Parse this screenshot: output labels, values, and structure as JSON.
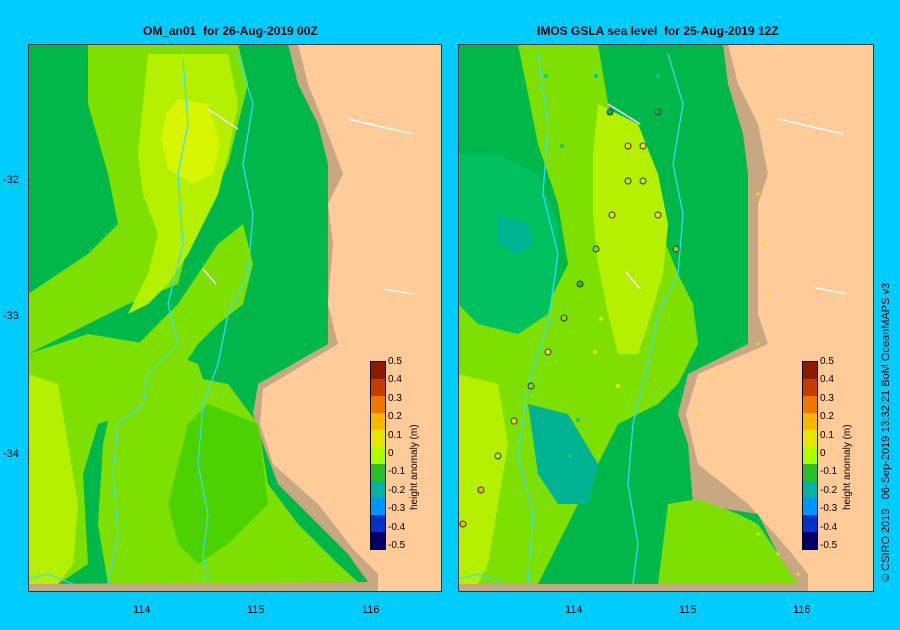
{
  "left_map": {
    "title": "OM_an01  for 26-Aug-2019 00Z"
  },
  "right_map": {
    "title": "IMOS GSLA sea level  for 25-Aug-2019 12Z"
  },
  "axes": {
    "lat_ticks": [
      "-32",
      "-33",
      "-34"
    ],
    "lon_ticks": [
      "114",
      "115",
      "116"
    ]
  },
  "colorbar": {
    "title": "height anomaly (m)",
    "labels": [
      "0.5",
      "0.4",
      "0.3",
      "0.2",
      "0.1",
      "0",
      "-0.1",
      "-0.2",
      "-0.3",
      "-0.4",
      "-0.5"
    ],
    "colors": [
      "#8b1a00",
      "#c83c00",
      "#f07800",
      "#ffb400",
      "#e6e600",
      "#aaff00",
      "#2bbf2b",
      "#00b4a0",
      "#0096ff",
      "#0032c8",
      "#000064"
    ]
  },
  "credit": "© CSIRO 2019   06-Sep-2019 13:32:21 BoM OceanMAPS v3",
  "colors": {
    "background": "#00ccff",
    "land": "#ffcc99",
    "shelf": "#c8a882"
  }
}
